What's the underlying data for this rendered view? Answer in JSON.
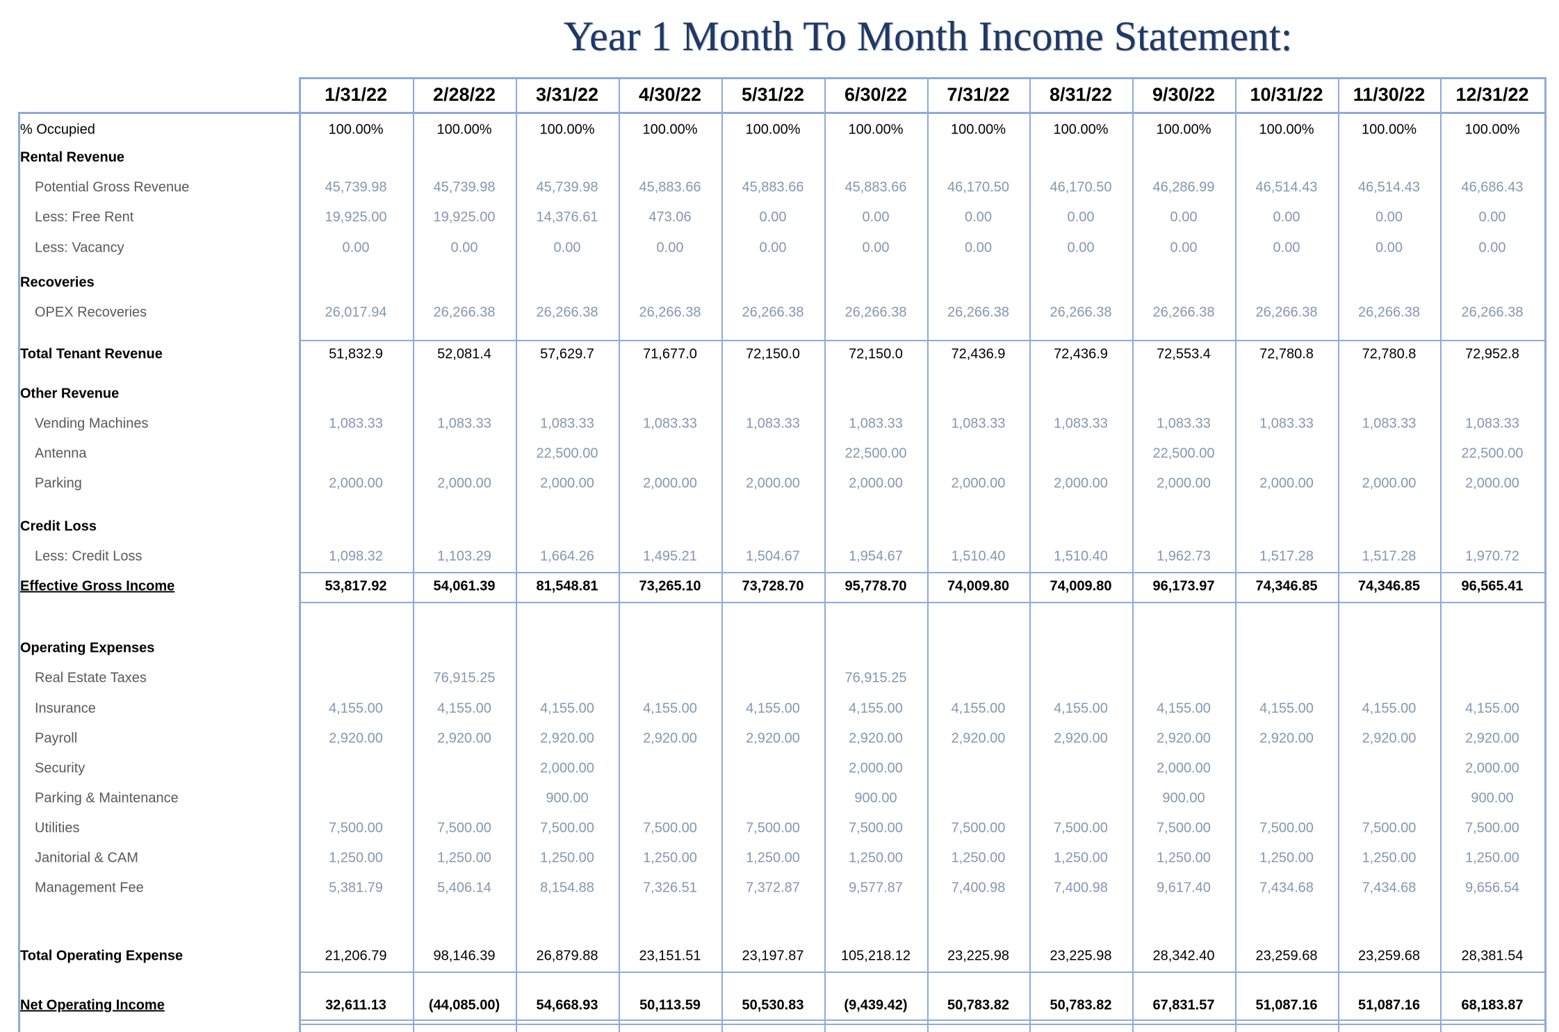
{
  "title": "Year 1 Month To Month Income Statement:",
  "colors": {
    "accent": "#1f3864",
    "grid": "#8eaadb",
    "light_value": "#8497b0",
    "label_gray": "#595959"
  },
  "columns": [
    "1/31/22",
    "2/28/22",
    "3/31/22",
    "4/30/22",
    "5/31/22",
    "6/30/22",
    "7/31/22",
    "8/31/22",
    "9/30/22",
    "10/31/22",
    "11/30/22",
    "12/31/22"
  ],
  "rows": [
    {
      "label": "% Occupied",
      "kind": "plain",
      "style": "dark",
      "values": [
        "100.00%",
        "100.00%",
        "100.00%",
        "100.00%",
        "100.00%",
        "100.00%",
        "100.00%",
        "100.00%",
        "100.00%",
        "100.00%",
        "100.00%",
        "100.00%"
      ]
    },
    {
      "label": "Rental Revenue",
      "kind": "section",
      "values": []
    },
    {
      "label": "Potential Gross Revenue",
      "kind": "item",
      "style": "light",
      "values": [
        "45,739.98",
        "45,739.98",
        "45,739.98",
        "45,883.66",
        "45,883.66",
        "45,883.66",
        "46,170.50",
        "46,170.50",
        "46,286.99",
        "46,514.43",
        "46,514.43",
        "46,686.43"
      ]
    },
    {
      "label": "Less: Free Rent",
      "kind": "item",
      "style": "light",
      "values": [
        "19,925.00",
        "19,925.00",
        "14,376.61",
        "473.06",
        "0.00",
        "0.00",
        "0.00",
        "0.00",
        "0.00",
        "0.00",
        "0.00",
        "0.00"
      ]
    },
    {
      "label": "Less: Vacancy",
      "kind": "item",
      "style": "light",
      "values": [
        "0.00",
        "0.00",
        "0.00",
        "0.00",
        "0.00",
        "0.00",
        "0.00",
        "0.00",
        "0.00",
        "0.00",
        "0.00",
        "0.00"
      ]
    },
    {
      "label": "Recoveries",
      "kind": "section",
      "values": []
    },
    {
      "label": "OPEX Recoveries",
      "kind": "item",
      "style": "light",
      "values": [
        "26,017.94",
        "26,266.38",
        "26,266.38",
        "26,266.38",
        "26,266.38",
        "26,266.38",
        "26,266.38",
        "26,266.38",
        "26,266.38",
        "26,266.38",
        "26,266.38",
        "26,266.38"
      ]
    },
    {
      "label": "Total Tenant Revenue",
      "kind": "total",
      "style": "dark",
      "values": [
        "51,832.9",
        "52,081.4",
        "57,629.7",
        "71,677.0",
        "72,150.0",
        "72,150.0",
        "72,436.9",
        "72,436.9",
        "72,553.4",
        "72,780.8",
        "72,780.8",
        "72,952.8"
      ]
    },
    {
      "label": "Other Revenue",
      "kind": "section",
      "values": []
    },
    {
      "label": "Vending Machines",
      "kind": "item",
      "style": "light",
      "values": [
        "1,083.33",
        "1,083.33",
        "1,083.33",
        "1,083.33",
        "1,083.33",
        "1,083.33",
        "1,083.33",
        "1,083.33",
        "1,083.33",
        "1,083.33",
        "1,083.33",
        "1,083.33"
      ]
    },
    {
      "label": "Antenna",
      "kind": "item",
      "style": "light",
      "values": [
        "",
        "",
        "22,500.00",
        "",
        "",
        "22,500.00",
        "",
        "",
        "22,500.00",
        "",
        "",
        "22,500.00"
      ]
    },
    {
      "label": "Parking",
      "kind": "item",
      "style": "light",
      "values": [
        "2,000.00",
        "2,000.00",
        "2,000.00",
        "2,000.00",
        "2,000.00",
        "2,000.00",
        "2,000.00",
        "2,000.00",
        "2,000.00",
        "2,000.00",
        "2,000.00",
        "2,000.00"
      ]
    },
    {
      "label": "Credit Loss",
      "kind": "section",
      "values": []
    },
    {
      "label": "Less: Credit Loss",
      "kind": "item",
      "style": "light",
      "values": [
        "1,098.32",
        "1,103.29",
        "1,664.26",
        "1,495.21",
        "1,504.67",
        "1,954.67",
        "1,510.40",
        "1,510.40",
        "1,962.73",
        "1,517.28",
        "1,517.28",
        "1,970.72"
      ]
    },
    {
      "label": "Effective Gross Income",
      "kind": "total-u",
      "style": "bold",
      "values": [
        "53,817.92",
        "54,061.39",
        "81,548.81",
        "73,265.10",
        "73,728.70",
        "95,778.70",
        "74,009.80",
        "74,009.80",
        "96,173.97",
        "74,346.85",
        "74,346.85",
        "96,565.41"
      ]
    },
    {
      "label": "Operating Expenses",
      "kind": "section",
      "values": []
    },
    {
      "label": "Real Estate Taxes",
      "kind": "item",
      "style": "light",
      "values": [
        "",
        "76,915.25",
        "",
        "",
        "",
        "76,915.25",
        "",
        "",
        "",
        "",
        "",
        ""
      ]
    },
    {
      "label": "Insurance",
      "kind": "item",
      "style": "light",
      "values": [
        "4,155.00",
        "4,155.00",
        "4,155.00",
        "4,155.00",
        "4,155.00",
        "4,155.00",
        "4,155.00",
        "4,155.00",
        "4,155.00",
        "4,155.00",
        "4,155.00",
        "4,155.00"
      ]
    },
    {
      "label": "Payroll",
      "kind": "item",
      "style": "light",
      "values": [
        "2,920.00",
        "2,920.00",
        "2,920.00",
        "2,920.00",
        "2,920.00",
        "2,920.00",
        "2,920.00",
        "2,920.00",
        "2,920.00",
        "2,920.00",
        "2,920.00",
        "2,920.00"
      ]
    },
    {
      "label": "Security",
      "kind": "item",
      "style": "light",
      "values": [
        "",
        "",
        "2,000.00",
        "",
        "",
        "2,000.00",
        "",
        "",
        "2,000.00",
        "",
        "",
        "2,000.00"
      ]
    },
    {
      "label": "Parking & Maintenance",
      "kind": "item",
      "style": "light",
      "values": [
        "",
        "",
        "900.00",
        "",
        "",
        "900.00",
        "",
        "",
        "900.00",
        "",
        "",
        "900.00"
      ]
    },
    {
      "label": "Utilities",
      "kind": "item",
      "style": "light",
      "values": [
        "7,500.00",
        "7,500.00",
        "7,500.00",
        "7,500.00",
        "7,500.00",
        "7,500.00",
        "7,500.00",
        "7,500.00",
        "7,500.00",
        "7,500.00",
        "7,500.00",
        "7,500.00"
      ]
    },
    {
      "label": "Janitorial & CAM",
      "kind": "item",
      "style": "light",
      "values": [
        "1,250.00",
        "1,250.00",
        "1,250.00",
        "1,250.00",
        "1,250.00",
        "1,250.00",
        "1,250.00",
        "1,250.00",
        "1,250.00",
        "1,250.00",
        "1,250.00",
        "1,250.00"
      ]
    },
    {
      "label": "Management Fee",
      "kind": "item",
      "style": "light",
      "values": [
        "5,381.79",
        "5,406.14",
        "8,154.88",
        "7,326.51",
        "7,372.87",
        "9,577.87",
        "7,400.98",
        "7,400.98",
        "9,617.40",
        "7,434.68",
        "7,434.68",
        "9,656.54"
      ]
    },
    {
      "label": "Total Operating Expense",
      "kind": "total",
      "style": "dark",
      "values": [
        "21,206.79",
        "98,146.39",
        "26,879.88",
        "23,151.51",
        "23,197.87",
        "105,218.12",
        "23,225.98",
        "23,225.98",
        "28,342.40",
        "23,259.68",
        "23,259.68",
        "28,381.54"
      ]
    },
    {
      "label": "Net Operating Income",
      "kind": "total-u",
      "style": "bold",
      "values": [
        "32,611.13",
        "(44,085.00)",
        "54,668.93",
        "50,113.59",
        "50,530.83",
        "(9,439.42)",
        "50,783.82",
        "50,783.82",
        "67,831.57",
        "51,087.16",
        "51,087.16",
        "68,183.87"
      ]
    }
  ]
}
